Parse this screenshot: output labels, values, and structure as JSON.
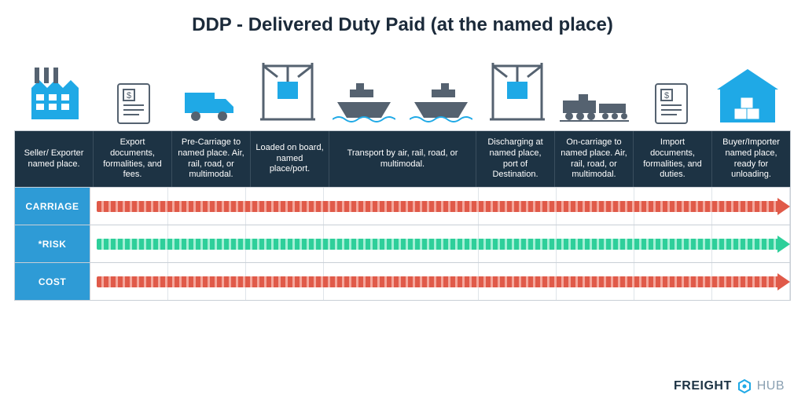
{
  "title": "DDP - Delivered Duty Paid (at the named place)",
  "colors": {
    "header_bg": "#1d3344",
    "header_border": "#3a4e5e",
    "label_bg": "#2e9bd6",
    "grid_border": "#c9cfd6",
    "cell_border": "#dfe4e9",
    "red": "#e05a49",
    "red_light": "#f3a79c",
    "green": "#2ecf9a",
    "green_light": "#a6efd6",
    "icon_blue": "#1fa9e6",
    "icon_gray": "#556270",
    "text": "#1b2a3a",
    "bg": "#ffffff"
  },
  "typography": {
    "title_fontsize": 24,
    "header_fontsize": 11,
    "row_label_fontsize": 12,
    "footer_fontsize": 16
  },
  "columns": [
    {
      "label": "Seller/ Exporter named place.",
      "wide": false
    },
    {
      "label": "Export documents, formalities, and fees.",
      "wide": false
    },
    {
      "label": "Pre-Carriage to named place. Air, rail, road, or multimodal.",
      "wide": false
    },
    {
      "label": "Loaded on board, named place/port.",
      "wide": false
    },
    {
      "label": "Transport by air, rail, road, or multimodal.",
      "wide": true
    },
    {
      "label": "Discharging at named place, port of Destination.",
      "wide": false
    },
    {
      "label": "On-carriage to named place. Air, rail, road, or multimodal.",
      "wide": false
    },
    {
      "label": "Import documents, formalities, and duties.",
      "wide": false
    },
    {
      "label": "Buyer/Importer named place, ready for unloading.",
      "wide": false
    }
  ],
  "rows": [
    {
      "label": "CARRIAGE",
      "arrow_color": "red",
      "span": 1.0
    },
    {
      "label": "*RISK",
      "arrow_color": "green",
      "span": 1.0
    },
    {
      "label": "COST",
      "arrow_color": "red",
      "span": 1.0
    }
  ],
  "icons": [
    {
      "name": "factory-icon",
      "color": "#1fa9e6"
    },
    {
      "name": "invoice-icon",
      "color": "#556270"
    },
    {
      "name": "truck-icon",
      "color": "#1fa9e6"
    },
    {
      "name": "crane-load-icon",
      "color": "#556270"
    },
    {
      "name": "ship-origin-icon",
      "color": "#556270"
    },
    {
      "name": "ship-destination-icon",
      "color": "#556270"
    },
    {
      "name": "crane-unload-icon",
      "color": "#556270"
    },
    {
      "name": "train-icon",
      "color": "#556270"
    },
    {
      "name": "invoice-import-icon",
      "color": "#556270"
    },
    {
      "name": "warehouse-icon",
      "color": "#1fa9e6"
    }
  ],
  "footer": {
    "brand_a": "FREIGHT",
    "brand_b": "HUB"
  }
}
